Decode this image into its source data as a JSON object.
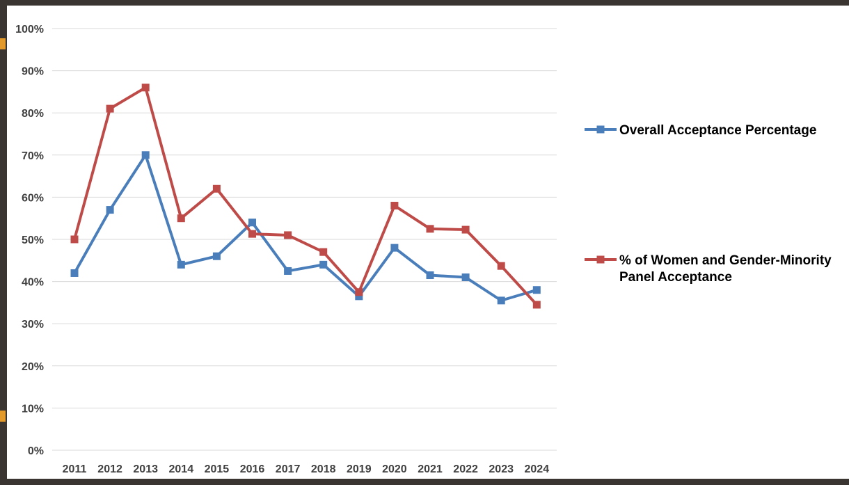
{
  "chart_data": {
    "type": "line",
    "title": "",
    "xlabel": "",
    "ylabel": "",
    "categories": [
      "2011",
      "2012",
      "2013",
      "2014",
      "2015",
      "2016",
      "2017",
      "2018",
      "2019",
      "2020",
      "2021",
      "2022",
      "2023",
      "2024"
    ],
    "ylim": [
      0,
      100
    ],
    "yticks": [
      "0%",
      "10%",
      "20%",
      "30%",
      "40%",
      "50%",
      "60%",
      "70%",
      "80%",
      "90%",
      "100%"
    ],
    "grid": true,
    "legend_position": "right",
    "series": [
      {
        "name": "Overall Acceptance Percentage",
        "color": "#4a7ebb",
        "values": [
          42,
          57,
          70,
          44,
          46,
          54,
          42.5,
          44,
          36.5,
          48,
          41.5,
          41,
          35.5,
          38
        ]
      },
      {
        "name": "% of Women and Gender-Minority Panel Acceptance",
        "legend_lines": [
          "% of Women and Gender-Minority",
          "Panel Acceptance"
        ],
        "color": "#be4b48",
        "values": [
          50,
          81,
          86,
          55,
          62,
          51.3,
          51,
          47,
          37.5,
          58,
          52.5,
          52.3,
          43.7,
          34.5
        ]
      }
    ]
  }
}
